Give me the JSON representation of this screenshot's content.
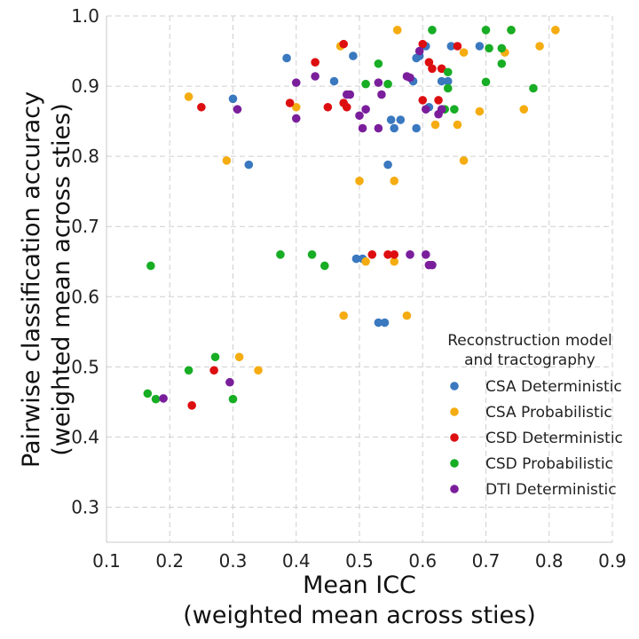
{
  "chart_data": {
    "type": "scatter",
    "xlabel_line1": "Mean ICC",
    "xlabel_line2": "(weighted mean across sties)",
    "ylabel_line1": "Pairwise classification accuracy",
    "ylabel_line2": "(weighted mean across sties)",
    "xlim": [
      0.1,
      0.9
    ],
    "ylim": [
      0.25,
      1.0
    ],
    "xticks": [
      0.1,
      0.2,
      0.3,
      0.4,
      0.5,
      0.6,
      0.7,
      0.8,
      0.9
    ],
    "yticks": [
      0.3,
      0.4,
      0.5,
      0.6,
      0.7,
      0.8,
      0.9,
      1.0
    ],
    "xtick_labels": [
      "0.1",
      "0.2",
      "0.3",
      "0.4",
      "0.5",
      "0.6",
      "0.7",
      "0.8",
      "0.9"
    ],
    "ytick_labels": [
      "0.3",
      "0.4",
      "0.5",
      "0.6",
      "0.7",
      "0.8",
      "0.9",
      "1.0"
    ],
    "grid": true,
    "legend": {
      "title_line1": "Reconstruction model",
      "title_line2": "and tractography",
      "placement": "lower-right"
    },
    "series": [
      {
        "name": "CSA Deterministic",
        "color": "#3a78bf",
        "points": [
          [
            0.3,
            0.882
          ],
          [
            0.325,
            0.788
          ],
          [
            0.385,
            0.94
          ],
          [
            0.49,
            0.943
          ],
          [
            0.46,
            0.907
          ],
          [
            0.495,
            0.654
          ],
          [
            0.505,
            0.654
          ],
          [
            0.53,
            0.563
          ],
          [
            0.54,
            0.563
          ],
          [
            0.545,
            0.788
          ],
          [
            0.55,
            0.852
          ],
          [
            0.555,
            0.84
          ],
          [
            0.565,
            0.852
          ],
          [
            0.585,
            0.907
          ],
          [
            0.59,
            0.94
          ],
          [
            0.59,
            0.84
          ],
          [
            0.595,
            0.943
          ],
          [
            0.605,
            0.957
          ],
          [
            0.61,
            0.87
          ],
          [
            0.63,
            0.907
          ],
          [
            0.64,
            0.907
          ],
          [
            0.645,
            0.957
          ],
          [
            0.69,
            0.957
          ]
        ]
      },
      {
        "name": "CSA Probabilistic",
        "color": "#f5ac10",
        "points": [
          [
            0.23,
            0.885
          ],
          [
            0.29,
            0.794
          ],
          [
            0.31,
            0.514
          ],
          [
            0.34,
            0.495
          ],
          [
            0.4,
            0.87
          ],
          [
            0.47,
            0.957
          ],
          [
            0.475,
            0.573
          ],
          [
            0.5,
            0.765
          ],
          [
            0.51,
            0.65
          ],
          [
            0.555,
            0.65
          ],
          [
            0.555,
            0.765
          ],
          [
            0.56,
            0.98
          ],
          [
            0.575,
            0.573
          ],
          [
            0.62,
            0.845
          ],
          [
            0.655,
            0.845
          ],
          [
            0.665,
            0.794
          ],
          [
            0.665,
            0.948
          ],
          [
            0.69,
            0.864
          ],
          [
            0.73,
            0.948
          ],
          [
            0.74,
            0.98
          ],
          [
            0.76,
            0.867
          ],
          [
            0.785,
            0.957
          ],
          [
            0.81,
            0.98
          ]
        ]
      },
      {
        "name": "CSD Deterministic",
        "color": "#dd0e10",
        "points": [
          [
            0.235,
            0.445
          ],
          [
            0.25,
            0.87
          ],
          [
            0.27,
            0.495
          ],
          [
            0.39,
            0.876
          ],
          [
            0.43,
            0.934
          ],
          [
            0.45,
            0.87
          ],
          [
            0.475,
            0.876
          ],
          [
            0.475,
            0.96
          ],
          [
            0.48,
            0.87
          ],
          [
            0.52,
            0.66
          ],
          [
            0.545,
            0.66
          ],
          [
            0.555,
            0.66
          ],
          [
            0.6,
            0.88
          ],
          [
            0.6,
            0.96
          ],
          [
            0.61,
            0.934
          ],
          [
            0.615,
            0.925
          ],
          [
            0.625,
            0.88
          ],
          [
            0.63,
            0.925
          ],
          [
            0.655,
            0.957
          ]
        ]
      },
      {
        "name": "CSD Probabilistic",
        "color": "#17ad24",
        "points": [
          [
            0.165,
            0.462
          ],
          [
            0.17,
            0.644
          ],
          [
            0.178,
            0.454
          ],
          [
            0.23,
            0.495
          ],
          [
            0.272,
            0.514
          ],
          [
            0.3,
            0.454
          ],
          [
            0.375,
            0.66
          ],
          [
            0.425,
            0.66
          ],
          [
            0.445,
            0.644
          ],
          [
            0.51,
            0.903
          ],
          [
            0.53,
            0.932
          ],
          [
            0.545,
            0.903
          ],
          [
            0.615,
            0.98
          ],
          [
            0.635,
            0.867
          ],
          [
            0.64,
            0.897
          ],
          [
            0.64,
            0.92
          ],
          [
            0.65,
            0.867
          ],
          [
            0.7,
            0.906
          ],
          [
            0.7,
            0.98
          ],
          [
            0.705,
            0.954
          ],
          [
            0.725,
            0.954
          ],
          [
            0.725,
            0.932
          ],
          [
            0.74,
            0.98
          ],
          [
            0.775,
            0.897
          ]
        ]
      },
      {
        "name": "DTI Deterministic",
        "color": "#7a1e9c",
        "points": [
          [
            0.19,
            0.455
          ],
          [
            0.295,
            0.478
          ],
          [
            0.307,
            0.867
          ],
          [
            0.4,
            0.905
          ],
          [
            0.4,
            0.854
          ],
          [
            0.43,
            0.914
          ],
          [
            0.48,
            0.888
          ],
          [
            0.485,
            0.888
          ],
          [
            0.5,
            0.858
          ],
          [
            0.505,
            0.84
          ],
          [
            0.51,
            0.867
          ],
          [
            0.53,
            0.84
          ],
          [
            0.53,
            0.905
          ],
          [
            0.535,
            0.888
          ],
          [
            0.575,
            0.914
          ],
          [
            0.58,
            0.66
          ],
          [
            0.58,
            0.912
          ],
          [
            0.595,
            0.95
          ],
          [
            0.605,
            0.867
          ],
          [
            0.605,
            0.66
          ],
          [
            0.61,
            0.645
          ],
          [
            0.615,
            0.645
          ],
          [
            0.625,
            0.86
          ],
          [
            0.63,
            0.867
          ]
        ]
      }
    ]
  }
}
